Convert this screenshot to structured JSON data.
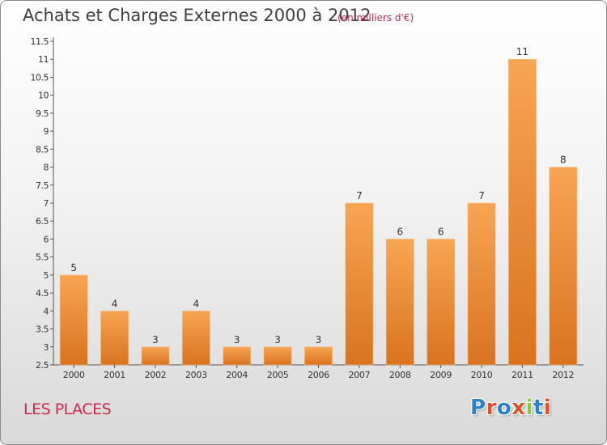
{
  "title": "Achats et Charges Externes 2000 à 2012",
  "unit_label": "(en milliers d'€)",
  "commune": "LES PLACES",
  "logo": {
    "text": "Proxiti",
    "letters": [
      "P",
      "r",
      "o",
      "x",
      "i",
      "t",
      "i"
    ],
    "colors": [
      "#2a83c8",
      "#e0502a",
      "#2a83c8",
      "#e0502a",
      "#8cc63f",
      "#2a83c8",
      "#e0502a"
    ]
  },
  "colors": {
    "bar_light": "#f7a553",
    "bar_dark": "#d9731f",
    "title": "#3f3f3f",
    "accent": "#cc2a4c"
  },
  "chart_data": {
    "type": "bar",
    "title": "Achats et Charges Externes 2000 à 2012",
    "xlabel": "",
    "ylabel": "(en milliers d'€)",
    "categories": [
      "2000",
      "2001",
      "2002",
      "2003",
      "2004",
      "2005",
      "2006",
      "2007",
      "2008",
      "2009",
      "2010",
      "2011",
      "2012"
    ],
    "values": [
      5,
      4,
      3,
      4,
      3,
      3,
      3,
      7,
      6,
      6,
      7,
      11,
      8
    ],
    "ylim": [
      2.5,
      11.5
    ],
    "yticks": [
      "2.5",
      "3",
      "3.5",
      "4",
      "4.5",
      "5",
      "5.5",
      "6",
      "6.5",
      "7",
      "7.5",
      "8",
      "8.5",
      "9",
      "9.5",
      "10",
      "10.5",
      "11",
      "11.5"
    ],
    "grid": false
  }
}
